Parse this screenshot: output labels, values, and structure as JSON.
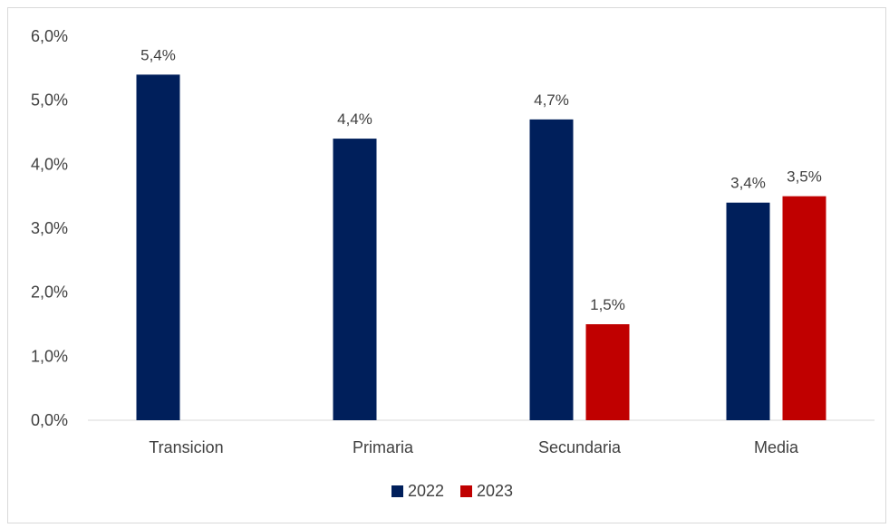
{
  "chart_data": {
    "type": "bar",
    "categories": [
      "Transicion",
      "Primaria",
      "Secundaria",
      "Media"
    ],
    "series": [
      {
        "name": "2022",
        "color": "#001f5b",
        "values": [
          5.4,
          4.4,
          4.7,
          3.4
        ],
        "labels": [
          "5,4%",
          "4,4%",
          "4,7%",
          "3,4%"
        ]
      },
      {
        "name": "2023",
        "color": "#c00000",
        "values": [
          null,
          null,
          1.5,
          3.5
        ],
        "labels": [
          null,
          null,
          "1,5%",
          "3,5%"
        ]
      }
    ],
    "ylim": [
      0,
      6
    ],
    "yticks": [
      0,
      1,
      2,
      3,
      4,
      5,
      6
    ],
    "ytick_labels": [
      "0,0%",
      "1,0%",
      "2,0%",
      "3,0%",
      "4,0%",
      "5,0%",
      "6,0%"
    ],
    "legend": "bottom",
    "grid": false
  }
}
